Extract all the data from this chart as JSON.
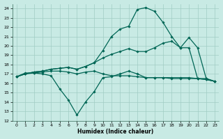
{
  "xlabel": "Humidex (Indice chaleur)",
  "background_color": "#c8eae4",
  "grid_color": "#a0ccc4",
  "line_color": "#006655",
  "xlim": [
    -0.5,
    23.5
  ],
  "ylim": [
    12,
    24.5
  ],
  "yticks": [
    12,
    13,
    14,
    15,
    16,
    17,
    18,
    19,
    20,
    21,
    22,
    23,
    24
  ],
  "xticks": [
    0,
    1,
    2,
    3,
    4,
    5,
    6,
    7,
    8,
    9,
    10,
    11,
    12,
    13,
    14,
    15,
    16,
    17,
    18,
    19,
    20,
    21,
    22,
    23
  ],
  "series": [
    {
      "x": [
        0,
        1,
        2,
        3,
        4,
        5,
        6,
        7,
        8,
        9,
        10,
        11,
        12,
        13,
        14,
        15,
        16,
        17,
        18,
        19,
        20,
        21,
        22,
        23
      ],
      "y": [
        16.7,
        17.1,
        17.1,
        17.0,
        16.8,
        15.4,
        14.2,
        12.6,
        14.0,
        15.1,
        16.6,
        16.7,
        17.0,
        17.3,
        17.0,
        16.6,
        16.6,
        16.6,
        16.6,
        16.6,
        16.6,
        16.5,
        16.4,
        16.2
      ]
    },
    {
      "x": [
        0,
        1,
        2,
        3,
        4,
        5,
        6,
        7,
        8,
        9,
        10,
        11,
        12,
        13,
        14,
        15,
        16,
        17,
        18,
        19,
        20,
        21,
        22,
        23
      ],
      "y": [
        16.7,
        17.0,
        17.1,
        17.2,
        17.3,
        17.3,
        17.2,
        17.0,
        17.2,
        17.3,
        17.0,
        16.8,
        16.8,
        16.8,
        16.7,
        16.6,
        16.6,
        16.6,
        16.5,
        16.5,
        16.5,
        16.5,
        16.4,
        16.2
      ]
    },
    {
      "x": [
        0,
        1,
        2,
        3,
        4,
        5,
        6,
        7,
        8,
        9,
        10,
        11,
        12,
        13,
        14,
        15,
        16,
        17,
        18,
        19,
        20,
        21,
        22,
        23
      ],
      "y": [
        16.7,
        17.0,
        17.2,
        17.3,
        17.5,
        17.6,
        17.7,
        17.5,
        17.8,
        18.2,
        18.7,
        19.1,
        19.4,
        19.7,
        19.4,
        19.4,
        19.8,
        20.3,
        20.5,
        19.8,
        19.8,
        16.5,
        16.5,
        16.2
      ]
    },
    {
      "x": [
        0,
        1,
        2,
        3,
        4,
        5,
        6,
        7,
        8,
        9,
        10,
        11,
        12,
        13,
        14,
        15,
        16,
        17,
        18,
        19,
        20,
        21,
        22,
        23
      ],
      "y": [
        16.7,
        17.0,
        17.2,
        17.3,
        17.5,
        17.6,
        17.7,
        17.5,
        17.8,
        18.2,
        19.5,
        21.0,
        21.8,
        22.1,
        23.9,
        24.1,
        23.7,
        22.5,
        21.0,
        19.8,
        20.9,
        19.8,
        16.5,
        16.2
      ]
    }
  ]
}
